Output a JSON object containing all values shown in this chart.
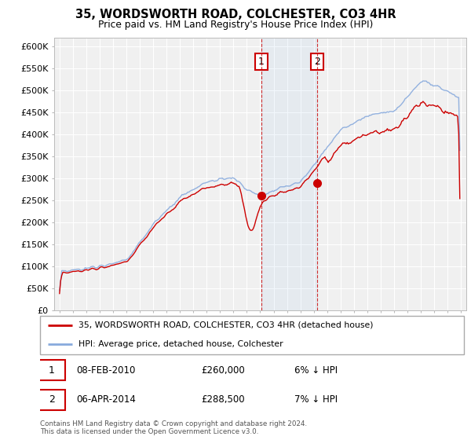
{
  "title": "35, WORDSWORTH ROAD, COLCHESTER, CO3 4HR",
  "subtitle": "Price paid vs. HM Land Registry's House Price Index (HPI)",
  "line1_label": "35, WORDSWORTH ROAD, COLCHESTER, CO3 4HR (detached house)",
  "line2_label": "HPI: Average price, detached house, Colchester",
  "line1_color": "#cc0000",
  "line2_color": "#88aadd",
  "ann1_x": 2010.08,
  "ann1_y": 260000,
  "ann2_x": 2014.25,
  "ann2_y": 288500,
  "ann1_date": "08-FEB-2010",
  "ann1_price": "£260,000",
  "ann1_pct": "6% ↓ HPI",
  "ann2_date": "06-APR-2014",
  "ann2_price": "£288,500",
  "ann2_pct": "7% ↓ HPI",
  "footer": "Contains HM Land Registry data © Crown copyright and database right 2024.\nThis data is licensed under the Open Government Licence v3.0.",
  "ylim": [
    0,
    620000
  ],
  "yticks": [
    0,
    50000,
    100000,
    150000,
    200000,
    250000,
    300000,
    350000,
    400000,
    450000,
    500000,
    550000,
    600000
  ],
  "xmin": 1994.6,
  "xmax": 2025.4,
  "background_color": "#ffffff",
  "plot_bg": "#f0f0f0",
  "grid_color": "#ffffff"
}
